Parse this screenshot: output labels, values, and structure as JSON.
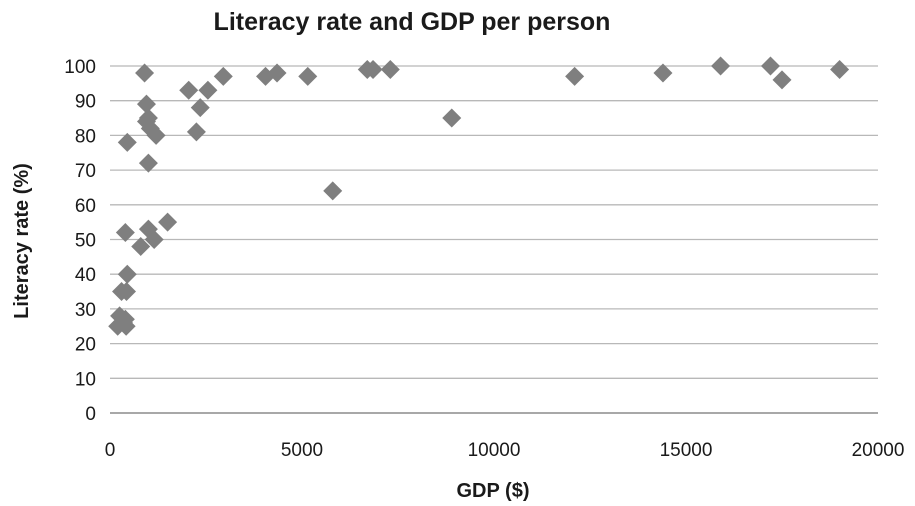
{
  "chart_data": {
    "type": "scatter",
    "title": "Literacy rate and GDP per person",
    "xlabel": "GDP ($)",
    "ylabel": "Literacy rate (%)",
    "xlim": [
      0,
      20000
    ],
    "ylim": [
      0,
      100
    ],
    "x_ticks": [
      "0",
      "5000",
      "10000",
      "15000",
      "20000"
    ],
    "y_ticks": [
      "0",
      "10",
      "20",
      "30",
      "40",
      "50",
      "60",
      "70",
      "80",
      "90",
      "100"
    ],
    "grid": true,
    "legend": "none",
    "marker": "diamond",
    "marker_color": "#7f7f7f",
    "points": [
      {
        "x": 200,
        "y": 25
      },
      {
        "x": 250,
        "y": 28
      },
      {
        "x": 300,
        "y": 35
      },
      {
        "x": 350,
        "y": 26
      },
      {
        "x": 400,
        "y": 27
      },
      {
        "x": 420,
        "y": 25
      },
      {
        "x": 430,
        "y": 35
      },
      {
        "x": 450,
        "y": 40
      },
      {
        "x": 400,
        "y": 52
      },
      {
        "x": 450,
        "y": 78
      },
      {
        "x": 800,
        "y": 48
      },
      {
        "x": 900,
        "y": 98
      },
      {
        "x": 950,
        "y": 89
      },
      {
        "x": 950,
        "y": 84
      },
      {
        "x": 1000,
        "y": 85
      },
      {
        "x": 1050,
        "y": 82
      },
      {
        "x": 1000,
        "y": 72
      },
      {
        "x": 1000,
        "y": 53
      },
      {
        "x": 1150,
        "y": 50
      },
      {
        "x": 1200,
        "y": 80
      },
      {
        "x": 1500,
        "y": 55
      },
      {
        "x": 2050,
        "y": 93
      },
      {
        "x": 2250,
        "y": 81
      },
      {
        "x": 2350,
        "y": 88
      },
      {
        "x": 2550,
        "y": 93
      },
      {
        "x": 2950,
        "y": 97
      },
      {
        "x": 4050,
        "y": 97
      },
      {
        "x": 4350,
        "y": 98
      },
      {
        "x": 5150,
        "y": 97
      },
      {
        "x": 5800,
        "y": 64
      },
      {
        "x": 6700,
        "y": 99
      },
      {
        "x": 6850,
        "y": 99
      },
      {
        "x": 7300,
        "y": 99
      },
      {
        "x": 8900,
        "y": 85
      },
      {
        "x": 12100,
        "y": 97
      },
      {
        "x": 14400,
        "y": 98
      },
      {
        "x": 15900,
        "y": 100
      },
      {
        "x": 17200,
        "y": 100
      },
      {
        "x": 17500,
        "y": 96
      },
      {
        "x": 19000,
        "y": 99
      }
    ]
  }
}
